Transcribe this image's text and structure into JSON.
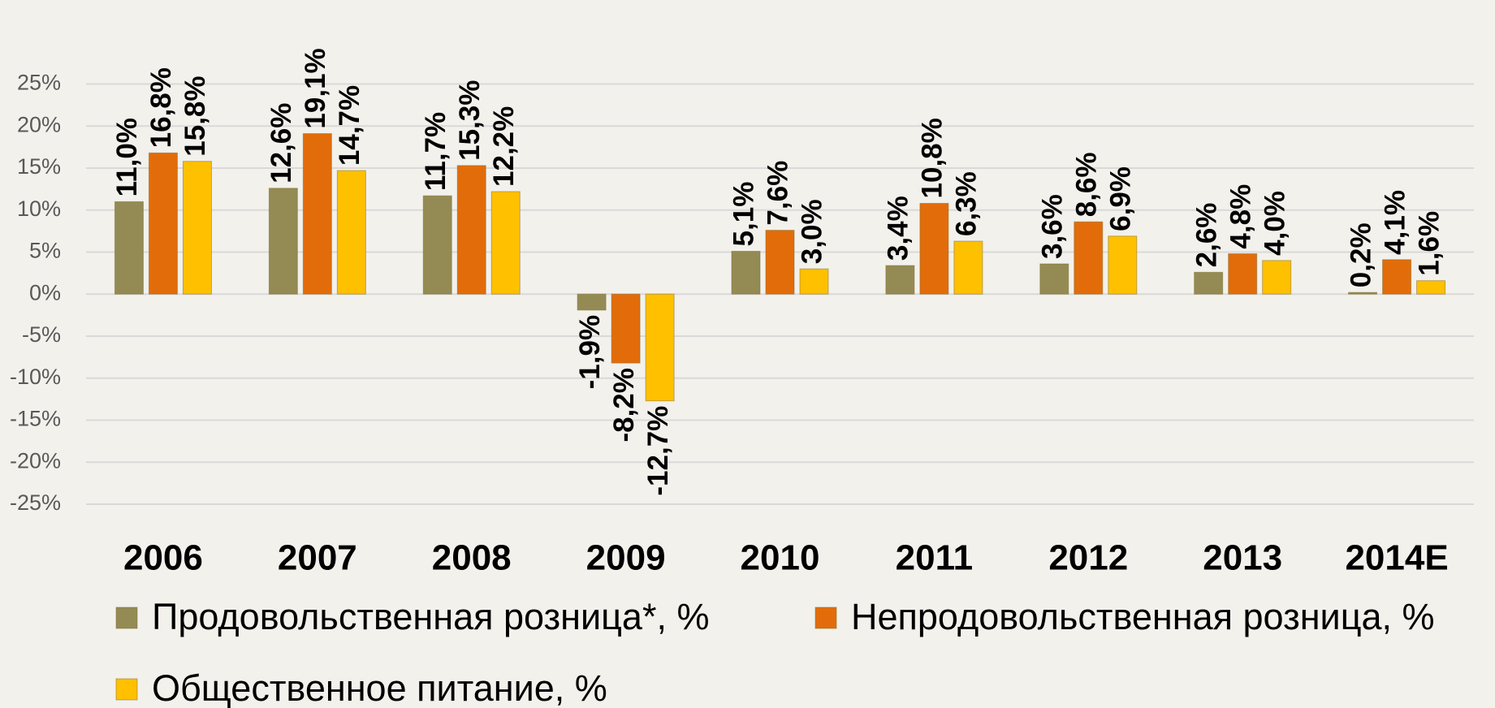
{
  "chart_data": {
    "type": "bar",
    "categories": [
      "2006",
      "2007",
      "2008",
      "2009",
      "2010",
      "2011",
      "2012",
      "2013",
      "2014E"
    ],
    "series": [
      {
        "name": "Продовольственная розница*, %",
        "color": "#948b54",
        "values": [
          11.0,
          12.6,
          11.7,
          -1.9,
          5.1,
          3.4,
          3.6,
          2.6,
          0.2
        ],
        "value_labels": [
          "11,0%",
          "12,6%",
          "11,7%",
          "-1,9%",
          "5,1%",
          "3,4%",
          "3,6%",
          "2,6%",
          "0,2%"
        ]
      },
      {
        "name": "Непродовольственная розница, %",
        "color": "#e36c0a",
        "values": [
          16.8,
          19.1,
          15.3,
          -8.2,
          7.6,
          10.8,
          8.6,
          4.8,
          4.1
        ],
        "value_labels": [
          "16,8%",
          "19,1%",
          "15,3%",
          "-8,2%",
          "7,6%",
          "10,8%",
          "8,6%",
          "4,8%",
          "4,1%"
        ]
      },
      {
        "name": "Общественное питание, %",
        "color": "#ffc000",
        "values": [
          15.8,
          14.7,
          12.2,
          -12.7,
          3.0,
          6.3,
          6.9,
          4.0,
          1.6
        ],
        "value_labels": [
          "15,8%",
          "14,7%",
          "12,2%",
          "-12,7%",
          "3,0%",
          "6,3%",
          "6,9%",
          "4,0%",
          "1,6%"
        ]
      }
    ],
    "ylim": [
      -25,
      25
    ],
    "yticks": [
      {
        "value": -25,
        "label": "-25%"
      },
      {
        "value": -20,
        "label": "-20%"
      },
      {
        "value": -15,
        "label": "-15%"
      },
      {
        "value": -10,
        "label": "-10%"
      },
      {
        "value": -5,
        "label": "-5%"
      },
      {
        "value": 0,
        "label": "0%"
      },
      {
        "value": 5,
        "label": "5%"
      },
      {
        "value": 10,
        "label": "10%"
      },
      {
        "value": 15,
        "label": "15%"
      },
      {
        "value": 20,
        "label": "20%"
      },
      {
        "value": 25,
        "label": "25%"
      }
    ],
    "grid": true,
    "legend": "bottom"
  }
}
